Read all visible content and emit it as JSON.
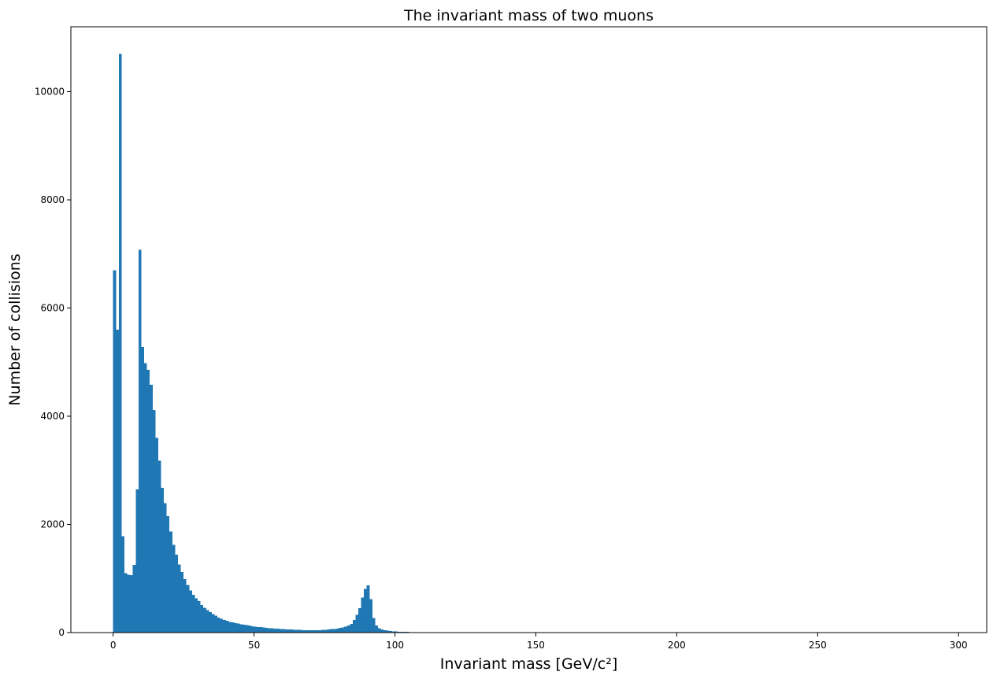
{
  "chart_data": {
    "type": "bar",
    "title": "The invariant mass of two muons",
    "xlabel": "Invariant mass [GeV/c²]",
    "ylabel": "Number of collisions",
    "xlim": [
      -15,
      310
    ],
    "ylim": [
      0,
      11200
    ],
    "xticks": [
      0,
      50,
      100,
      150,
      200,
      250,
      300
    ],
    "yticks": [
      0,
      2000,
      4000,
      6000,
      8000,
      10000
    ],
    "grid": false,
    "colors": {
      "bar": "#1f77b4",
      "axis": "#000000",
      "background": "#ffffff"
    },
    "bin_width": 1,
    "bins_start": 0,
    "values": [
      6700,
      5600,
      10700,
      1780,
      1100,
      1070,
      1060,
      1250,
      2650,
      7080,
      5280,
      4980,
      4860,
      4580,
      4120,
      3600,
      3180,
      2680,
      2390,
      2150,
      1870,
      1620,
      1440,
      1260,
      1120,
      990,
      880,
      780,
      700,
      630,
      580,
      510,
      460,
      415,
      380,
      345,
      310,
      280,
      255,
      235,
      215,
      200,
      188,
      176,
      165,
      155,
      145,
      136,
      128,
      120,
      112,
      105,
      99,
      93,
      88,
      83,
      78,
      74,
      70,
      66,
      63,
      60,
      57,
      55,
      52,
      50,
      48,
      46,
      44,
      43,
      42,
      42,
      43,
      45,
      48,
      52,
      57,
      62,
      68,
      76,
      85,
      96,
      110,
      130,
      160,
      230,
      330,
      450,
      650,
      810,
      870,
      620,
      270,
      130,
      80,
      58,
      45,
      36,
      30,
      25,
      21,
      18,
      15,
      13,
      11,
      10,
      9,
      8,
      7,
      6,
      6,
      5,
      5,
      4,
      4,
      4,
      3,
      3,
      3,
      3,
      3,
      2,
      2,
      2,
      2,
      2,
      2,
      2,
      2,
      2,
      1,
      1,
      1,
      1,
      1,
      1,
      1,
      1,
      1,
      1,
      1,
      1,
      1,
      1,
      1,
      1,
      1,
      1,
      1,
      1,
      1,
      1,
      1,
      1,
      1,
      1,
      1,
      1,
      1,
      1
    ]
  }
}
